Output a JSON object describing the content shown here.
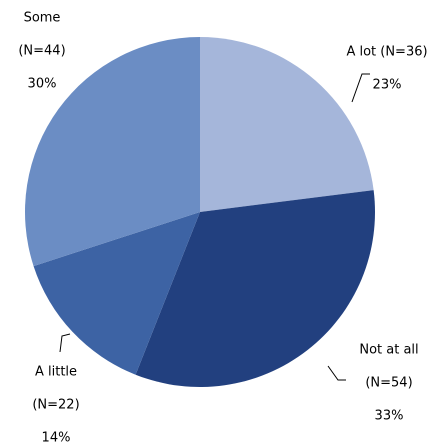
{
  "chart_data": {
    "type": "pie",
    "labels": [
      [
        "A lot (N=36)"
      ],
      [
        "Not at all",
        "(N=54)"
      ],
      [
        "A little",
        "(N=22)"
      ],
      [
        "Some",
        "(N=44)"
      ]
    ],
    "values": [
      23,
      33,
      14,
      30
    ],
    "value_labels": [
      "23%",
      "33%",
      "14%",
      "30%"
    ],
    "colors": [
      "#a5b6da",
      "#22407f",
      "#3d63a4",
      "#6b8dc4"
    ]
  }
}
